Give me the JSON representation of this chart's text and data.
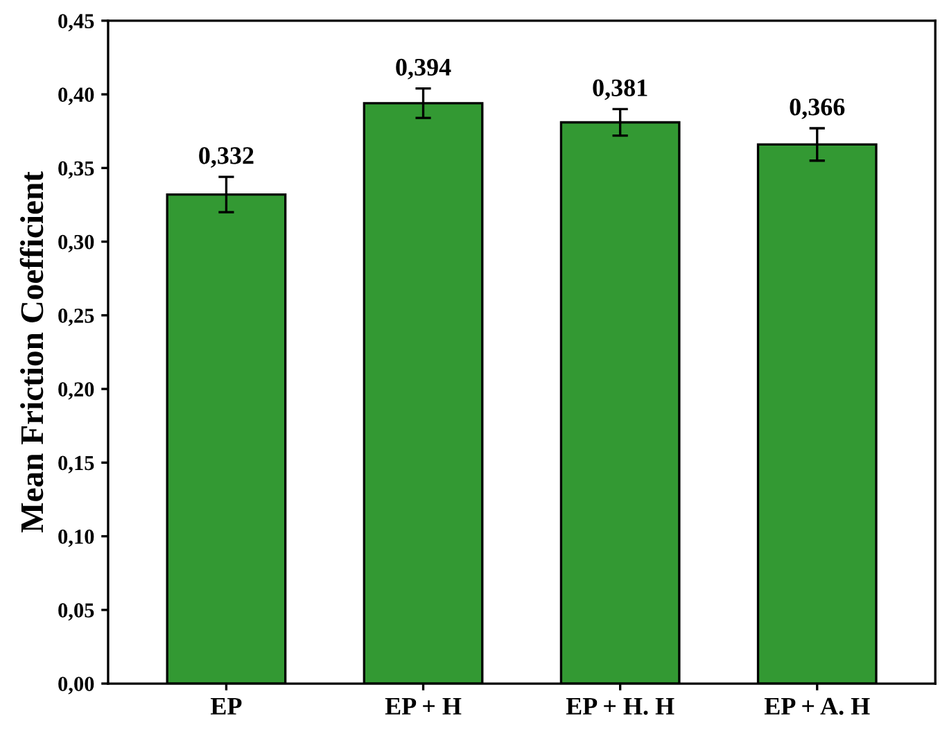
{
  "chart_data": {
    "type": "bar",
    "ylabel": "Mean Friction Coefficient",
    "categories": [
      "EP",
      "EP + H",
      "EP + H. H",
      "EP + A. H"
    ],
    "values": [
      0.332,
      0.394,
      0.381,
      0.366
    ],
    "errors": [
      0.012,
      0.01,
      0.009,
      0.011
    ],
    "color": "#339933",
    "value_labels": [
      "0,332",
      "0,394",
      "0,381",
      "0,366"
    ],
    "ylim": [
      0,
      0.45
    ],
    "yticks": [
      {
        "value": 0,
        "label": "0,00"
      },
      {
        "value": 0.05,
        "label": "0,05"
      },
      {
        "value": 0.1,
        "label": "0,10"
      },
      {
        "value": 0.15,
        "label": "0,15"
      },
      {
        "value": 0.2,
        "label": "0,20"
      },
      {
        "value": 0.25,
        "label": "0,25"
      },
      {
        "value": 0.3,
        "label": "0,30"
      },
      {
        "value": 0.35,
        "label": "0,35"
      },
      {
        "value": 0.4,
        "label": "0,40"
      },
      {
        "value": 0.45,
        "label": "0,45"
      }
    ],
    "grid": false,
    "legend": false
  }
}
